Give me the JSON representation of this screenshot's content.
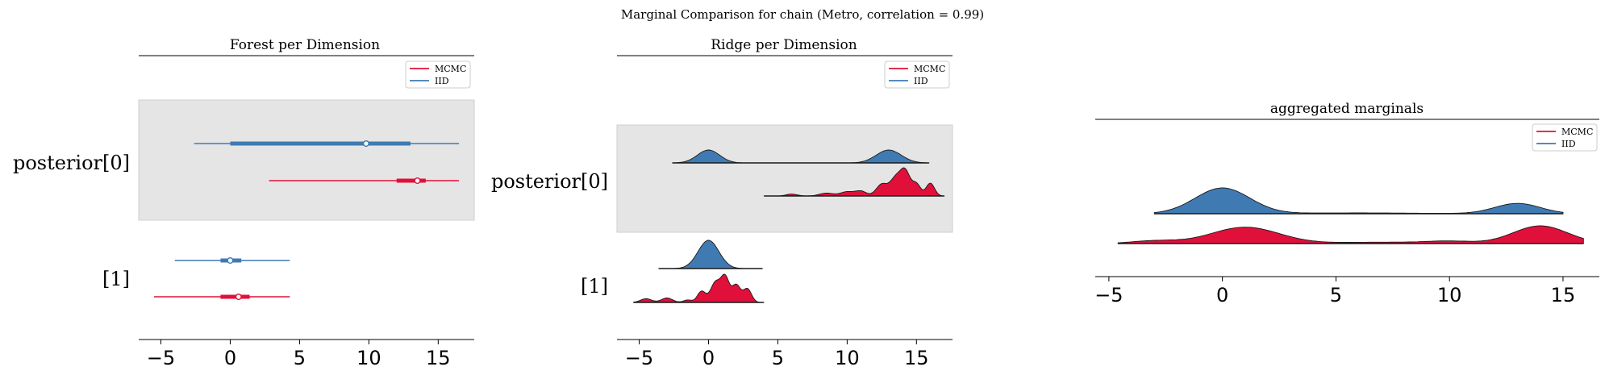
{
  "suptitle": "Marginal Comparison for chain (Metro, correlation = 0.99)",
  "colors": {
    "mcmc": "#e0103a",
    "iid": "#3f7ab3",
    "band": "#e5e5e5"
  },
  "chart_data": [
    {
      "type": "forest",
      "title": "Forest per Dimension",
      "xlim": [
        -6.6,
        17.6
      ],
      "xticks": [
        -5,
        0,
        5,
        10,
        15
      ],
      "xtick_labels": [
        "−5",
        "0",
        "5",
        "10",
        "15"
      ],
      "legend": {
        "placement": "top-right",
        "entries": [
          "MCMC",
          "IID"
        ]
      },
      "rows": [
        {
          "label": "posterior[0]",
          "shaded": true,
          "series": [
            {
              "name": "IID",
              "hdi94": [
                -2.6,
                16.5
              ],
              "hdi50": [
                0.0,
                13.0
              ],
              "mean": 9.8
            },
            {
              "name": "MCMC",
              "hdi94": [
                2.8,
                16.5
              ],
              "hdi50": [
                12.0,
                14.1
              ],
              "mean": 13.5
            }
          ]
        },
        {
          "label": "[1]",
          "shaded": false,
          "series": [
            {
              "name": "IID",
              "hdi94": [
                -4.0,
                4.3
              ],
              "hdi50": [
                -0.7,
                0.8
              ],
              "mean": 0.0
            },
            {
              "name": "MCMC",
              "hdi94": [
                -5.5,
                4.3
              ],
              "hdi50": [
                -0.7,
                1.4
              ],
              "mean": 0.6
            }
          ]
        }
      ]
    },
    {
      "type": "ridge",
      "title": "Ridge per Dimension",
      "xlim": [
        -6.6,
        17.6
      ],
      "xticks": [
        -5,
        0,
        5,
        10,
        15
      ],
      "xtick_labels": [
        "−5",
        "0",
        "5",
        "10",
        "15"
      ],
      "legend": {
        "placement": "top-right",
        "entries": [
          "MCMC",
          "IID"
        ]
      },
      "rows": [
        {
          "label": "posterior[0]",
          "shaded": true,
          "series": [
            {
              "name": "IID",
              "x_range": [
                -2.6,
                15.9
              ],
              "peaks": [
                [
                  0.0,
                  1.0,
                  0.8
                ],
                [
                  13.0,
                  1.0,
                  0.9
                ]
              ]
            },
            {
              "name": "MCMC",
              "x_range": [
                4.0,
                17.0
              ],
              "peaks": [
                [
                  6.0,
                  0.08,
                  0.4
                ],
                [
                  8.5,
                  0.12,
                  0.5
                ],
                [
                  10.0,
                  0.18,
                  0.5
                ],
                [
                  11.0,
                  0.2,
                  0.4
                ],
                [
                  12.5,
                  0.5,
                  0.4
                ],
                [
                  13.5,
                  0.75,
                  0.4
                ],
                [
                  14.2,
                  1.0,
                  0.35
                ],
                [
                  15.0,
                  0.5,
                  0.3
                ],
                [
                  16.0,
                  0.55,
                  0.3
                ]
              ]
            }
          ]
        },
        {
          "label": "[1]",
          "shaded": false,
          "series": [
            {
              "name": "IID",
              "x_range": [
                -3.6,
                3.9
              ],
              "peaks": [
                [
                  0.0,
                  1.0,
                  0.75
                ]
              ]
            },
            {
              "name": "MCMC",
              "x_range": [
                -5.4,
                4.0
              ],
              "peaks": [
                [
                  -4.5,
                  0.15,
                  0.4
                ],
                [
                  -3.0,
                  0.18,
                  0.4
                ],
                [
                  -1.5,
                  0.1,
                  0.3
                ],
                [
                  -0.5,
                  0.45,
                  0.3
                ],
                [
                  0.5,
                  0.8,
                  0.35
                ],
                [
                  1.2,
                  1.0,
                  0.3
                ],
                [
                  2.0,
                  0.7,
                  0.3
                ],
                [
                  2.8,
                  0.55,
                  0.3
                ]
              ]
            }
          ]
        }
      ]
    },
    {
      "type": "ridge",
      "title": "aggregated marginals",
      "xlim": [
        -5.6,
        16.6
      ],
      "xticks": [
        -5,
        0,
        5,
        10,
        15
      ],
      "xtick_labels": [
        "−5",
        "0",
        "5",
        "10",
        "15"
      ],
      "legend": {
        "placement": "top-right",
        "entries": [
          "MCMC",
          "IID"
        ]
      },
      "rows": [
        {
          "label": "",
          "shaded": false,
          "series": [
            {
              "name": "IID",
              "x_range": [
                -3.0,
                15.0
              ],
              "peaks": [
                [
                  0.0,
                  1.0,
                  1.2
                ],
                [
                  13.0,
                  0.4,
                  1.0
                ],
                [
                  6.0,
                  0.03,
                  3.0
                ]
              ]
            },
            {
              "name": "MCMC",
              "x_range": [
                -4.6,
                15.9
              ],
              "peaks": [
                [
                  1.0,
                  0.6,
                  1.5
                ],
                [
                  -3.0,
                  0.1,
                  1.0
                ],
                [
                  7.0,
                  0.05,
                  2.0
                ],
                [
                  10.0,
                  0.08,
                  1.0
                ],
                [
                  14.0,
                  0.65,
                  1.2
                ]
              ]
            }
          ]
        }
      ]
    }
  ]
}
